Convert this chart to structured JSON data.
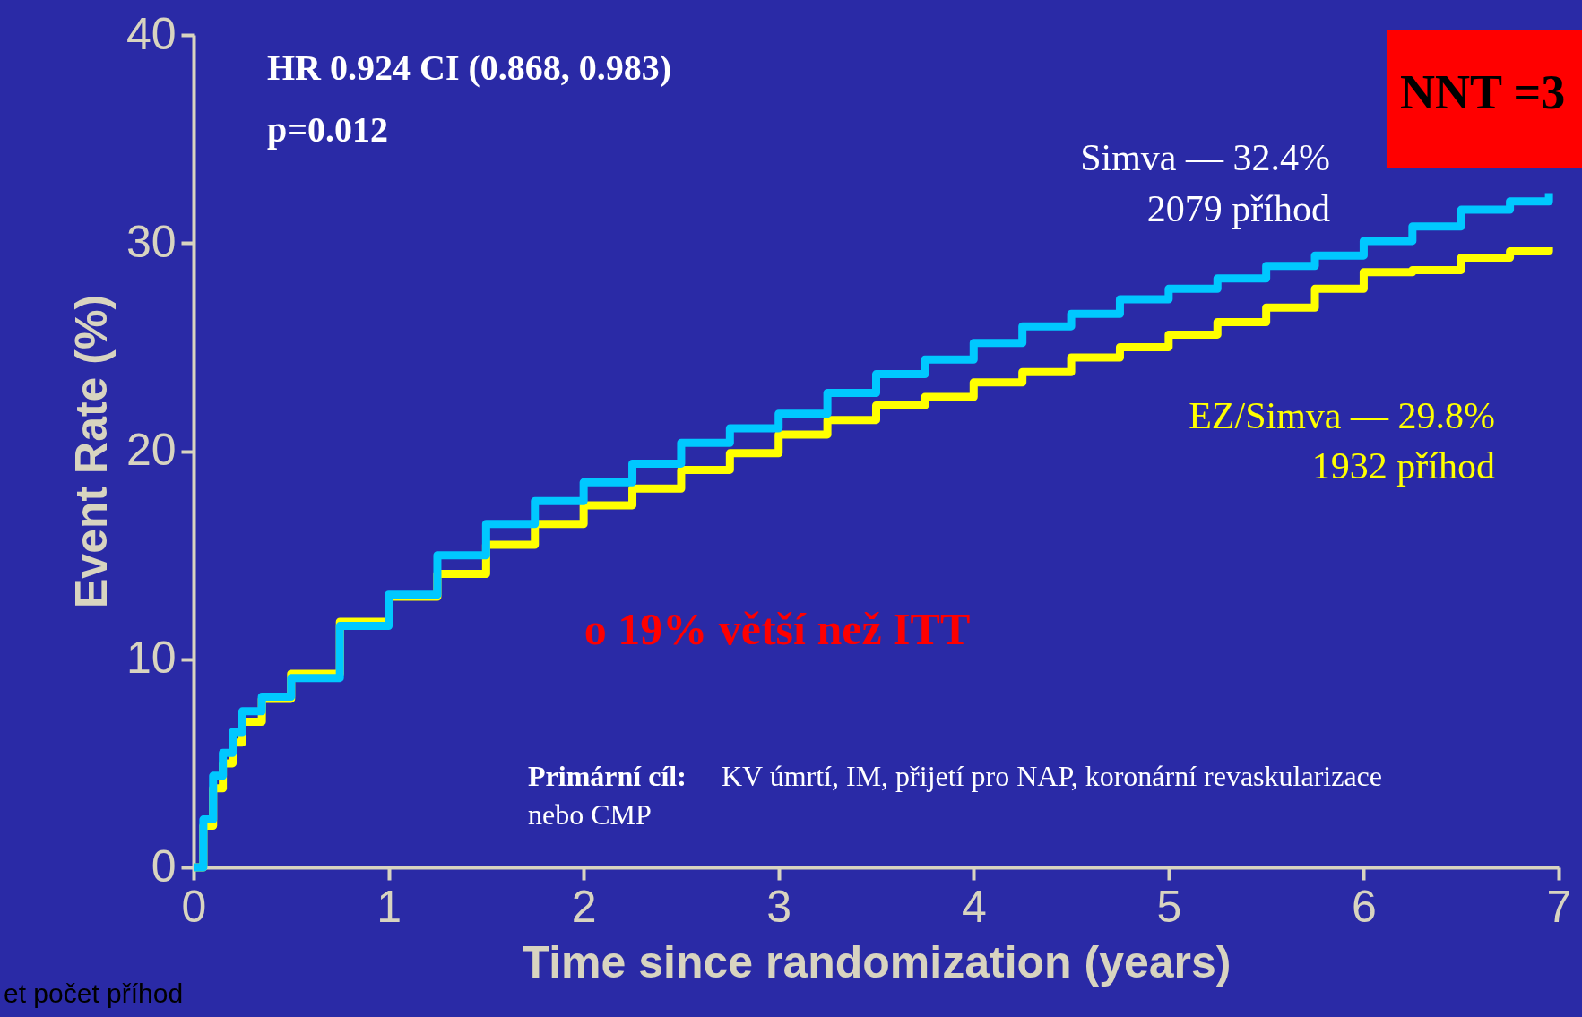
{
  "chart_data": {
    "type": "step",
    "xlabel": "Time since randomization (years)",
    "ylabel": "Event Rate (%)",
    "xlim": [
      0,
      7
    ],
    "xticks": [
      0,
      1,
      2,
      3,
      4,
      5,
      6,
      7
    ],
    "ylim": [
      0,
      40
    ],
    "yticks": [
      0,
      10,
      20,
      30,
      40
    ],
    "grid": false,
    "legend": false,
    "marker": "none",
    "line_style": "solid",
    "series": [
      {
        "name": "EZ/Simva — 29.8%",
        "color": "#ffff00",
        "x": [
          0,
          0.05,
          0.1,
          0.15,
          0.2,
          0.25,
          0.35,
          0.5,
          0.75,
          1,
          1.25,
          1.5,
          1.75,
          2,
          2.25,
          2.5,
          2.75,
          3,
          3.25,
          3.5,
          3.75,
          4,
          4.25,
          4.5,
          4.75,
          5,
          5.25,
          5.5,
          5.75,
          6,
          6.25,
          6.5,
          6.75,
          6.95
        ],
        "values": [
          0,
          2.0,
          3.8,
          5.0,
          6.0,
          7.0,
          8.1,
          9.3,
          11.8,
          13.0,
          14.1,
          15.5,
          16.5,
          17.4,
          18.2,
          19.1,
          19.9,
          20.8,
          21.5,
          22.2,
          22.6,
          23.3,
          23.8,
          24.5,
          25.0,
          25.6,
          26.2,
          26.9,
          27.8,
          28.6,
          28.7,
          29.3,
          29.6,
          29.8
        ]
      },
      {
        "name": "Simva — 32.4%",
        "color": "#00c8ff",
        "x": [
          0,
          0.05,
          0.1,
          0.15,
          0.2,
          0.25,
          0.35,
          0.5,
          0.75,
          1,
          1.25,
          1.5,
          1.75,
          2,
          2.25,
          2.5,
          2.75,
          3,
          3.25,
          3.5,
          3.75,
          4,
          4.25,
          4.5,
          4.75,
          5,
          5.25,
          5.5,
          5.75,
          6,
          6.25,
          6.5,
          6.75,
          6.95
        ],
        "values": [
          0,
          2.3,
          4.4,
          5.5,
          6.5,
          7.5,
          8.2,
          9.1,
          11.6,
          13.1,
          15.0,
          16.5,
          17.6,
          18.5,
          19.4,
          20.4,
          21.1,
          21.8,
          22.8,
          23.7,
          24.4,
          25.2,
          26.0,
          26.6,
          27.3,
          27.8,
          28.3,
          28.9,
          29.4,
          30.1,
          30.8,
          31.6,
          32.0,
          32.4
        ]
      }
    ],
    "annotations": [
      "HR 0.924 CI (0.868, 0.983)",
      "p=0.012",
      "NNT =3",
      "2079 příhod",
      "1932 příhod",
      "o 19% větší než ITT",
      "Primární cíl:",
      "KV úmrtí, IM, přijetí pro NAP, koronární revaskularizace",
      "nebo CMP",
      "et počet příhod"
    ]
  }
}
